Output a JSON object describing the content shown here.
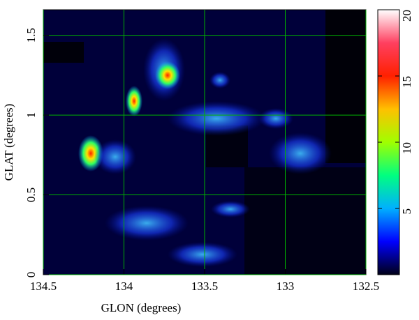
{
  "chart_data": {
    "type": "image",
    "xlabel": "GLON (degrees)",
    "ylabel": "GLAT (degrees)",
    "xlim": [
      134.5,
      132.5
    ],
    "xticks": [
      134.5,
      134,
      133.5,
      133,
      132.5
    ],
    "ylim": [
      0,
      1.66
    ],
    "yticks": [
      0,
      0.5,
      1,
      1.5
    ],
    "grid": true,
    "grid_color": "#00b000",
    "colorbar": {
      "lim": [
        0,
        20
      ],
      "ticks": [
        5,
        10,
        15,
        20
      ],
      "colors": [
        "#000018",
        "#0000ff",
        "#00b0ff",
        "#00ff80",
        "#a0ff00",
        "#ffc000",
        "#ff2000",
        "#ff4060",
        "#ffffff"
      ]
    }
  }
}
